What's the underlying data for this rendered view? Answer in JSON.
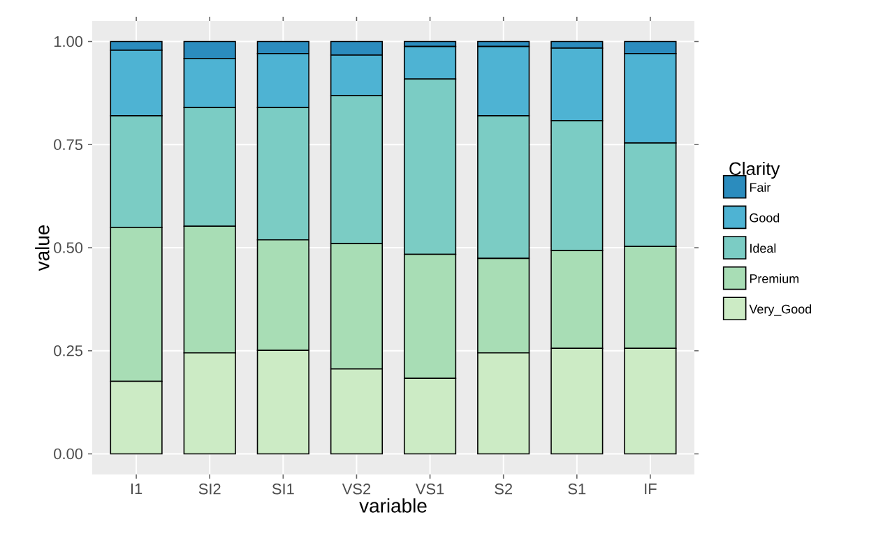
{
  "chart_data": {
    "type": "bar",
    "stacked": true,
    "xlabel": "variable",
    "ylabel": "value",
    "legend_title": "Clarity",
    "legend": "right",
    "grid": true,
    "categories": [
      "I1",
      "SI2",
      "SI1",
      "VS2",
      "VS1",
      "S2",
      "S1",
      "IF"
    ],
    "ylim": [
      -0.05,
      1.05
    ],
    "yticks": [
      {
        "value": 0,
        "label": "0.00"
      },
      {
        "value": 0.25,
        "label": "0.25"
      },
      {
        "value": 0.5,
        "label": "0.50"
      },
      {
        "value": 0.75,
        "label": "0.75"
      },
      {
        "value": 1,
        "label": "1.00"
      }
    ],
    "series": [
      {
        "name": "Very_Good",
        "color": "#ccebc5",
        "values": [
          0.176,
          0.245,
          0.251,
          0.206,
          0.183,
          0.245,
          0.256,
          0.256
        ]
      },
      {
        "name": "Premium",
        "color": "#a8ddb5",
        "values": [
          0.373,
          0.307,
          0.268,
          0.304,
          0.301,
          0.229,
          0.237,
          0.247
        ]
      },
      {
        "name": "Ideal",
        "color": "#7bccc4",
        "values": [
          0.271,
          0.288,
          0.321,
          0.359,
          0.425,
          0.346,
          0.315,
          0.251
        ]
      },
      {
        "name": "Good",
        "color": "#4eb3d3",
        "values": [
          0.159,
          0.119,
          0.131,
          0.098,
          0.079,
          0.168,
          0.176,
          0.217
        ]
      },
      {
        "name": "Fair",
        "color": "#2b8cbe",
        "values": [
          0.021,
          0.041,
          0.029,
          0.033,
          0.012,
          0.012,
          0.016,
          0.029
        ]
      }
    ]
  }
}
